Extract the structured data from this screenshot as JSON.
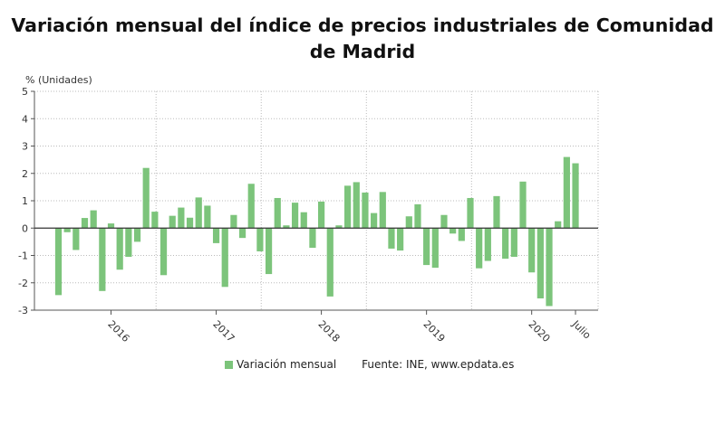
{
  "title": "Variación mensual del índice de precios industriales de Comunidad de Madrid",
  "legend": {
    "label": "Variación mensual",
    "source": "Fuente: INE, www.epdata.es"
  },
  "colors": {
    "bar": "#7cc47b",
    "zero_line": "#333333",
    "grid": "#bbbbbb"
  },
  "chart_data": {
    "type": "bar",
    "ylabel": "% (Unidades)",
    "ylim": [
      -3,
      5
    ],
    "yticks": [
      -3,
      -2,
      -1,
      0,
      1,
      2,
      3,
      4,
      5
    ],
    "grid": true,
    "x_tick_labels": [
      "2016",
      "2017",
      "2018",
      "2019",
      "2020",
      "Julio"
    ],
    "series": [
      {
        "name": "Variación mensual",
        "values": [
          -2.45,
          -0.15,
          -0.8,
          0.37,
          0.65,
          -2.3,
          0.17,
          -1.52,
          -1.05,
          -0.5,
          2.2,
          0.6,
          -1.72,
          0.45,
          0.75,
          0.38,
          1.12,
          0.82,
          -0.55,
          -2.15,
          0.48,
          -0.36,
          1.62,
          -0.85,
          -1.68,
          1.1,
          0.1,
          0.93,
          0.58,
          -0.72,
          0.97,
          -2.5,
          0.1,
          1.55,
          1.68,
          1.3,
          0.55,
          1.32,
          -0.75,
          -0.82,
          0.43,
          0.87,
          -1.35,
          -1.45,
          0.48,
          -0.2,
          -0.47,
          1.1,
          -1.47,
          -1.2,
          1.17,
          -1.12,
          -1.05,
          1.7,
          -1.62,
          -2.57,
          -2.85,
          0.25,
          2.6,
          2.37
        ]
      }
    ]
  }
}
